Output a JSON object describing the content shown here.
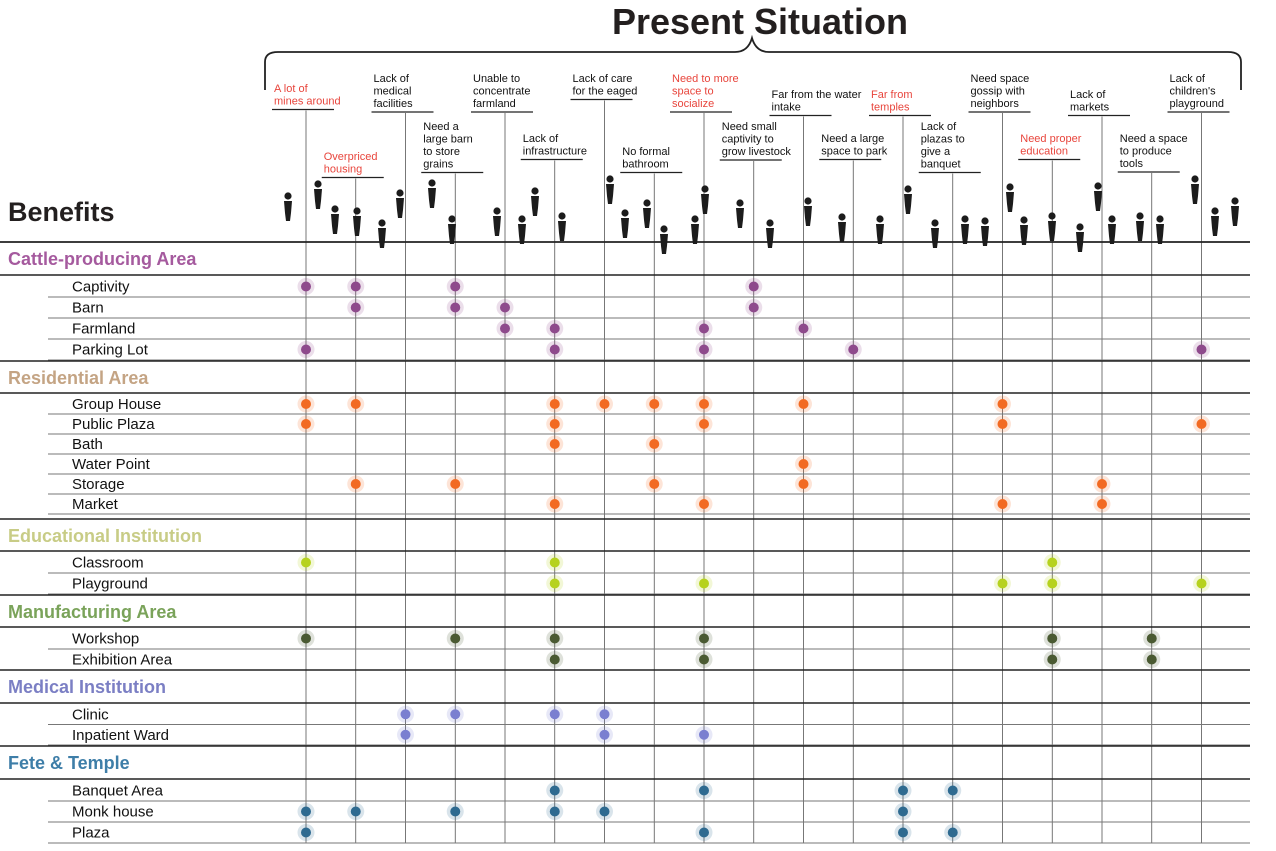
{
  "chart_data": {
    "type": "heatmap",
    "title": "Present Situation",
    "row_header": "Benefits",
    "colors": {
      "highlight_label": "#e8453c",
      "normal_label": "#111111"
    },
    "columns": [
      {
        "label": "A lot of mines around",
        "highlight": true
      },
      {
        "label": "Overpriced housing",
        "highlight": true
      },
      {
        "label": "Lack of medical facilities",
        "highlight": false
      },
      {
        "label": "Need a large barn to store grains",
        "highlight": false
      },
      {
        "label": "Unable to concentrate farmland",
        "highlight": false
      },
      {
        "label": "Lack of infrastructure",
        "highlight": false
      },
      {
        "label": "Lack of care for the eaged",
        "highlight": false
      },
      {
        "label": "No formal bathroom",
        "highlight": false
      },
      {
        "label": "Need to more space to socialize",
        "highlight": true
      },
      {
        "label": "Need small captivity to grow livestock",
        "highlight": false
      },
      {
        "label": "Far from the water intake",
        "highlight": false
      },
      {
        "label": "Need a large space to park",
        "highlight": false
      },
      {
        "label": "Far from temples",
        "highlight": true
      },
      {
        "label": "Lack of plazas to give a banquet",
        "highlight": false
      },
      {
        "label": "Need space gossip with neighbors",
        "highlight": false
      },
      {
        "label": "Need proper education",
        "highlight": true
      },
      {
        "label": "Lack of markets",
        "highlight": false
      },
      {
        "label": "Need a space to produce tools",
        "highlight": false
      },
      {
        "label": "Lack of children's playground",
        "highlight": false
      }
    ],
    "categories": [
      {
        "name": "Cattle-producing Area",
        "color": "#a55a9e",
        "dot_color": "#8e4a8c",
        "rows": [
          {
            "label": "Captivity",
            "cols": [
              0,
              1,
              3,
              9
            ]
          },
          {
            "label": "Barn",
            "cols": [
              1,
              3,
              4,
              9
            ]
          },
          {
            "label": "Farmland",
            "cols": [
              4,
              5,
              8,
              10
            ]
          },
          {
            "label": "Parking Lot",
            "cols": [
              0,
              5,
              8,
              11,
              18
            ]
          }
        ]
      },
      {
        "name": "Residential Area",
        "color": "#c4a484",
        "dot_color": "#f26a22",
        "rows": [
          {
            "label": "Group House",
            "cols": [
              0,
              1,
              5,
              6,
              7,
              8,
              10,
              14
            ]
          },
          {
            "label": "Public Plaza",
            "cols": [
              0,
              5,
              8,
              14,
              18
            ]
          },
          {
            "label": "Bath",
            "cols": [
              5,
              7
            ]
          },
          {
            "label": "Water Point",
            "cols": [
              10
            ]
          },
          {
            "label": "Storage",
            "cols": [
              1,
              3,
              7,
              10,
              16
            ]
          },
          {
            "label": "Market",
            "cols": [
              5,
              8,
              14,
              16
            ]
          }
        ]
      },
      {
        "name": "Educational Institution",
        "color": "#c8cc86",
        "dot_color": "#b6d21e",
        "rows": [
          {
            "label": "Classroom",
            "cols": [
              0,
              5,
              15
            ]
          },
          {
            "label": "Playground",
            "cols": [
              5,
              8,
              14,
              15,
              18
            ]
          }
        ]
      },
      {
        "name": "Manufacturing Area",
        "color": "#7aa35a",
        "dot_color": "#4a5a32",
        "rows": [
          {
            "label": "Workshop",
            "cols": [
              0,
              3,
              5,
              8,
              15,
              17
            ]
          },
          {
            "label": "Exhibition Area",
            "cols": [
              5,
              8,
              15,
              17
            ]
          }
        ]
      },
      {
        "name": "Medical Institution",
        "color": "#7b7fc4",
        "dot_color": "#7a7fd0",
        "rows": [
          {
            "label": "Clinic",
            "cols": [
              2,
              3,
              5,
              6
            ]
          },
          {
            "label": "Inpatient Ward",
            "cols": [
              2,
              6,
              8
            ]
          }
        ]
      },
      {
        "name": "Fete & Temple",
        "color": "#3e7ea8",
        "dot_color": "#2e6a90",
        "rows": [
          {
            "label": "Banquet Area",
            "cols": [
              5,
              8,
              12,
              13
            ]
          },
          {
            "label": "Monk house",
            "cols": [
              0,
              1,
              3,
              5,
              6,
              12
            ]
          },
          {
            "label": "Plaza",
            "cols": [
              0,
              8,
              12,
              13
            ]
          }
        ]
      }
    ],
    "grid": true,
    "legend": "none"
  }
}
